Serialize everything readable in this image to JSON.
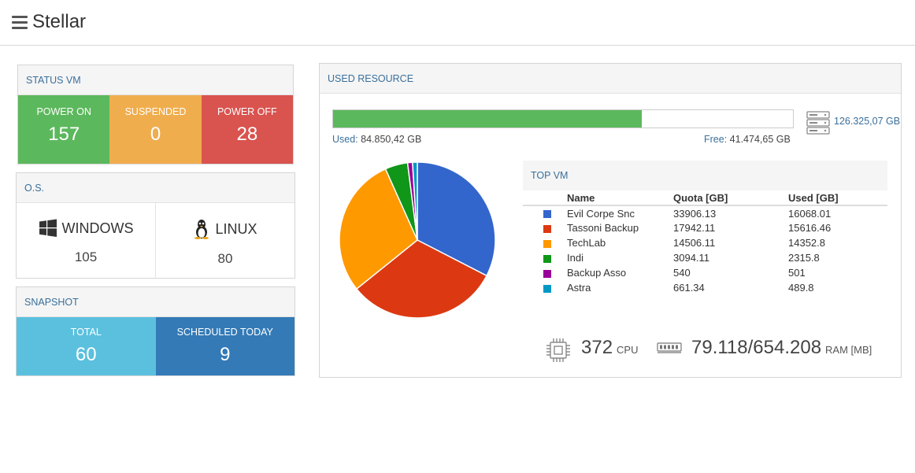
{
  "app": {
    "title": "Stellar"
  },
  "status_vm": {
    "title": "STATUS VM",
    "tiles": [
      {
        "label": "POWER ON",
        "value": "157",
        "color": "#5cb85c"
      },
      {
        "label": "SUSPENDED",
        "value": "0",
        "color": "#f0ad4e"
      },
      {
        "label": "POWER OFF",
        "value": "28",
        "color": "#d9534f"
      }
    ]
  },
  "os": {
    "title": "O.S.",
    "items": [
      {
        "name": "WINDOWS",
        "count": "105",
        "icon": "windows-icon"
      },
      {
        "name": "LINUX",
        "count": "80",
        "icon": "linux-tux-icon"
      }
    ]
  },
  "snapshot": {
    "title": "SNAPSHOT",
    "tiles": [
      {
        "label": "TOTAL",
        "value": "60",
        "color": "#5bc0de"
      },
      {
        "label": "SCHEDULED TODAY",
        "value": "9",
        "color": "#337ab7"
      }
    ]
  },
  "used_resource": {
    "title": "USED RESOURCE",
    "used_fraction": 0.6717,
    "used_label": "Used:",
    "used_value": "84.850,42 GB",
    "free_label": "Free:",
    "free_value": "41.474,65 GB",
    "total": "126.325,07 GB",
    "cpu_value": "372",
    "cpu_unit": "CPU",
    "ram_value": "79.118/654.208",
    "ram_unit": "RAM [MB]"
  },
  "chart_data": {
    "type": "pie",
    "categories": [
      "Evil Corpe Snc",
      "Tassoni Backup",
      "TechLab",
      "Indi",
      "Backup Asso",
      "Astra"
    ],
    "values": [
      16068.01,
      15616.46,
      14352.8,
      2315.8,
      501,
      489.8
    ],
    "colors": [
      "#3366cc",
      "#dc3912",
      "#ff9900",
      "#109618",
      "#990099",
      "#0099c6"
    ]
  },
  "top_vm": {
    "title": "TOP VM",
    "columns": [
      "Name",
      "Quota [GB]",
      "Used [GB]"
    ],
    "rows": [
      {
        "name": "Evil Corpe Snc",
        "quota": "33906.13",
        "used": "16068.01",
        "color": "#3366cc"
      },
      {
        "name": "Tassoni Backup",
        "quota": "17942.11",
        "used": "15616.46",
        "color": "#dc3912"
      },
      {
        "name": "TechLab",
        "quota": "14506.11",
        "used": "14352.8",
        "color": "#ff9900"
      },
      {
        "name": "Indi",
        "quota": "3094.11",
        "used": "2315.8",
        "color": "#109618"
      },
      {
        "name": "Backup Asso",
        "quota": "540",
        "used": "501",
        "color": "#990099"
      },
      {
        "name": "Astra",
        "quota": "661.34",
        "used": "489.8",
        "color": "#0099c6"
      }
    ]
  }
}
